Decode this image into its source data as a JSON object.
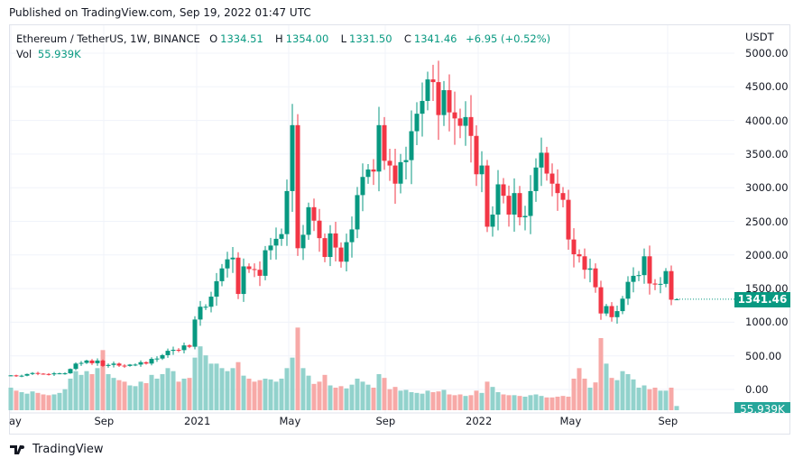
{
  "published": "Published on TradingView.com, Sep 19, 2022 01:47 UTC",
  "legend": {
    "symbol": "Ethereum / TetherUS, 1W, BINANCE",
    "o_label": "O",
    "o": "1334.51",
    "h_label": "H",
    "h": "1354.00",
    "l_label": "L",
    "l": "1331.50",
    "c_label": "C",
    "c": "1341.46",
    "change": "+6.95 (+0.52%)",
    "vol_label": "Vol",
    "vol": "55.939K"
  },
  "currency": "USDT",
  "price_ticks": [
    "5000.00",
    "4500.00",
    "4000.00",
    "3500.00",
    "3000.00",
    "2500.00",
    "2000.00",
    "1500.00",
    "1000.00",
    "500.00",
    "0.00"
  ],
  "time_ticks": [
    "ay",
    "Sep",
    "2021",
    "May",
    "Sep",
    "2022",
    "May",
    "Sep"
  ],
  "last_price": "1341.46",
  "last_volume": "55.939K",
  "colors": {
    "up": "#089981",
    "down": "#f23645",
    "vol_up": "#92d2cc",
    "vol_down": "#f7a9a7",
    "grid": "#f0f3fa"
  },
  "chart_data": {
    "type": "candlestick",
    "interval": "1W",
    "ylim": [
      0,
      5000
    ],
    "closes": [
      210,
      200,
      205,
      230,
      245,
      235,
      230,
      225,
      240,
      240,
      240,
      305,
      385,
      395,
      430,
      390,
      430,
      350,
      365,
      385,
      355,
      350,
      370,
      370,
      405,
      385,
      455,
      460,
      510,
      575,
      590,
      585,
      655,
      635,
      1040,
      1230,
      1230,
      1380,
      1610,
      1800,
      1935,
      1960,
      1420,
      1830,
      1790,
      1780,
      1690,
      2070,
      2140,
      2240,
      2310,
      2950,
      3930,
      2100,
      2300,
      2710,
      2510,
      2250,
      1970,
      2320,
      2110,
      1900,
      2190,
      2380,
      2890,
      3160,
      3270,
      3240,
      3930,
      3400,
      3330,
      3060,
      3380,
      3410,
      3840,
      4100,
      4290,
      4610,
      4570,
      4080,
      4450,
      4120,
      4030,
      3920,
      4050,
      3770,
      3200,
      3330,
      2420,
      2600,
      3050,
      2880,
      2600,
      2920,
      2560,
      2580,
      2950,
      3300,
      3520,
      3210,
      3060,
      2920,
      2820,
      2230,
      2010,
      1980,
      1780,
      1800,
      1520,
      1130,
      1240,
      1075,
      1165,
      1350,
      1600,
      1690,
      1700,
      1980,
      1575,
      1560,
      1570,
      1760,
      1334.51,
      1341.46
    ],
    "last": {
      "o": 1334.51,
      "h": 1354.0,
      "l": 1331.5,
      "c": 1341.46
    },
    "volume_k": [
      300,
      260,
      240,
      220,
      250,
      230,
      210,
      200,
      210,
      230,
      280,
      420,
      520,
      470,
      520,
      480,
      560,
      800,
      480,
      430,
      400,
      380,
      330,
      320,
      380,
      360,
      470,
      420,
      480,
      560,
      520,
      380,
      420,
      430,
      700,
      850,
      730,
      620,
      620,
      560,
      520,
      560,
      640,
      460,
      420,
      380,
      400,
      420,
      410,
      380,
      420,
      560,
      700,
      1100,
      560,
      460,
      350,
      380,
      470,
      330,
      300,
      320,
      290,
      340,
      420,
      380,
      340,
      300,
      480,
      430,
      280,
      310,
      260,
      270,
      240,
      230,
      220,
      260,
      240,
      250,
      270,
      210,
      200,
      210,
      190,
      200,
      260,
      230,
      380,
      310,
      240,
      210,
      200,
      200,
      190,
      180,
      200,
      210,
      190,
      170,
      170,
      180,
      190,
      180,
      420,
      560,
      420,
      300,
      370,
      960,
      620,
      430,
      400,
      520,
      480,
      410,
      300,
      330,
      280,
      300,
      260,
      260,
      300,
      56
    ]
  },
  "footer": {
    "brand": "TradingView"
  }
}
